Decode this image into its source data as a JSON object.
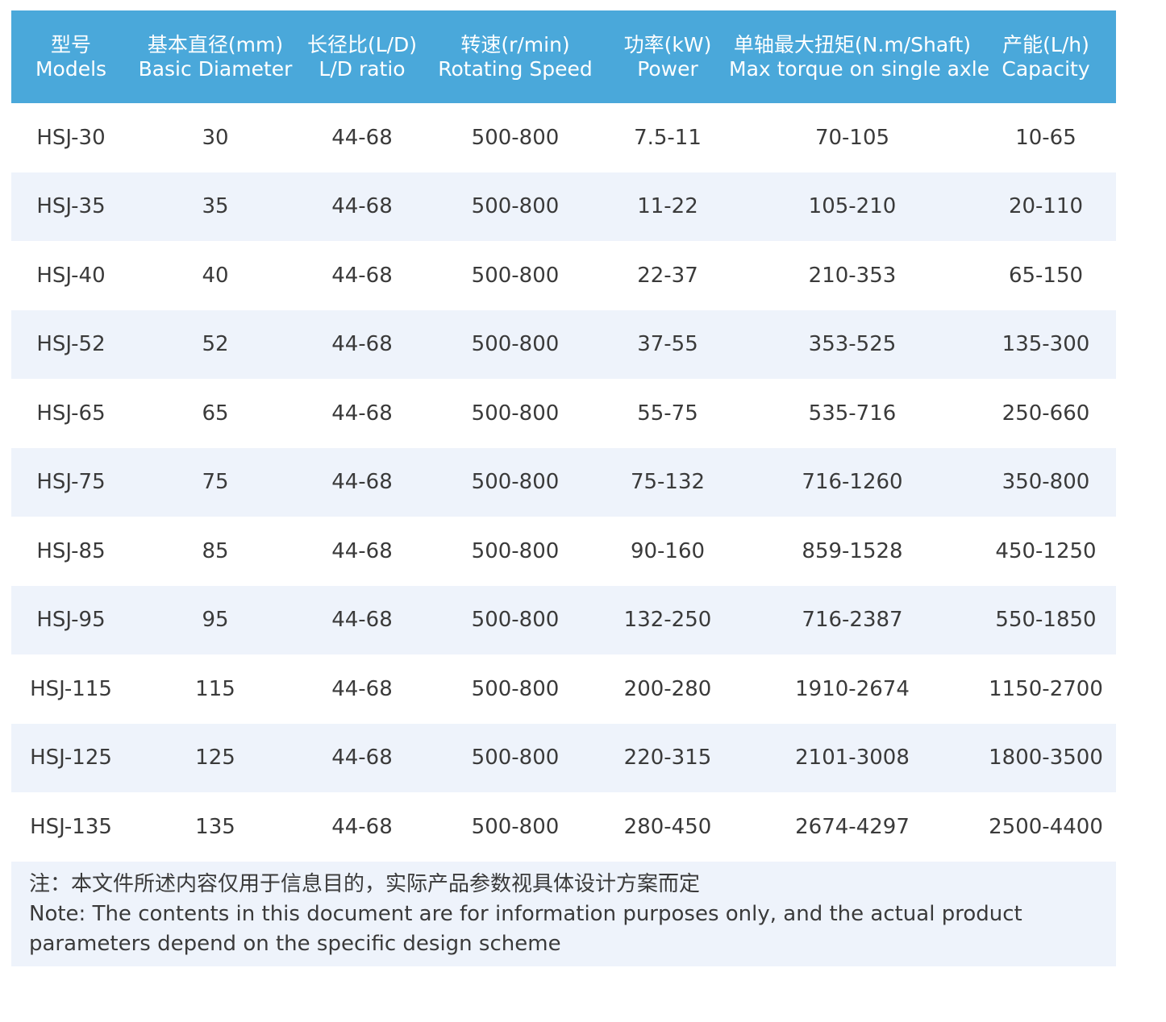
{
  "header": {
    "columns": [
      {
        "zh": "型号",
        "en": "Models"
      },
      {
        "zh": "基本直径(mm)",
        "en": "Basic Diameter"
      },
      {
        "zh": "长径比(L/D)",
        "en": "L/D ratio"
      },
      {
        "zh": "转速(r/min)",
        "en": "Rotating Speed"
      },
      {
        "zh": "功率(kW)",
        "en": "Power"
      },
      {
        "zh": "单轴最大扭矩(N.m/Shaft)",
        "en": "Max torque on single axle"
      },
      {
        "zh": "产能(L/h)",
        "en": "Capacity"
      }
    ]
  },
  "table": {
    "rows": [
      [
        "HSJ-30",
        "30",
        "44-68",
        "500-800",
        "7.5-11",
        "70-105",
        "10-65"
      ],
      [
        "HSJ-35",
        "35",
        "44-68",
        "500-800",
        "11-22",
        "105-210",
        "20-110"
      ],
      [
        "HSJ-40",
        "40",
        "44-68",
        "500-800",
        "22-37",
        "210-353",
        "65-150"
      ],
      [
        "HSJ-52",
        "52",
        "44-68",
        "500-800",
        "37-55",
        "353-525",
        "135-300"
      ],
      [
        "HSJ-65",
        "65",
        "44-68",
        "500-800",
        "55-75",
        "535-716",
        "250-660"
      ],
      [
        "HSJ-75",
        "75",
        "44-68",
        "500-800",
        "75-132",
        "716-1260",
        "350-800"
      ],
      [
        "HSJ-85",
        "85",
        "44-68",
        "500-800",
        "90-160",
        "859-1528",
        "450-1250"
      ],
      [
        "HSJ-95",
        "95",
        "44-68",
        "500-800",
        "132-250",
        "716-2387",
        "550-1850"
      ],
      [
        "HSJ-115",
        "115",
        "44-68",
        "500-800",
        "200-280",
        "1910-2674",
        "1150-2700"
      ],
      [
        "HSJ-125",
        "125",
        "44-68",
        "500-800",
        "220-315",
        "2101-3008",
        "1800-3500"
      ],
      [
        "HSJ-135",
        "135",
        "44-68",
        "500-800",
        "280-450",
        "2674-4297",
        "2500-4400"
      ]
    ]
  },
  "note": {
    "zh": "注：本文件所述内容仅用于信息目的，实际产品参数视具体设计方案而定",
    "en": "Note: The contents in this document are for information purposes only, and the actual product parameters depend on the specific design scheme"
  }
}
